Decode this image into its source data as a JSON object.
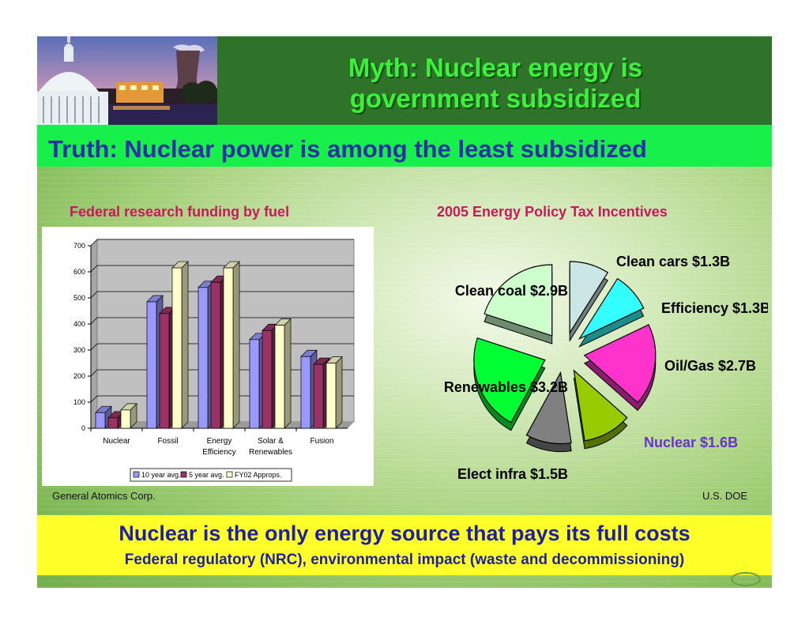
{
  "header": {
    "title_line1": "Myth: Nuclear energy is",
    "title_line2": "government subsidized",
    "image": "capitol-dome-and-cooling-tower-photo"
  },
  "truth": "Truth: Nuclear power is among the least subsidized",
  "bottom": {
    "main": "Nuclear is the only energy source that pays its full costs",
    "sub": "Federal regulatory (NRC), environmental impact (waste and decommissioning)"
  },
  "colors": {
    "header_band": "#2f7229",
    "title_green": "#3cf03c",
    "truth_band": "#17f04a",
    "truth_text": "#2b30a6",
    "subtitle": "#c8195c",
    "bottom_band": "#ffff2a",
    "bottom_text": "#1f1fa6"
  },
  "chart_data": [
    {
      "type": "bar",
      "title": "Federal research funding by fuel",
      "source": "General Atomics Corp.",
      "categories": [
        "Nuclear",
        "Fossil",
        "Energy Efficiency",
        "Solar & Renewables",
        "Fusion"
      ],
      "category_lines": [
        [
          "Nuclear"
        ],
        [
          "Fossil"
        ],
        [
          "Energy",
          "Efficiency"
        ],
        [
          "Solar &",
          "Renewables"
        ],
        [
          "Fusion"
        ]
      ],
      "series": [
        {
          "name": "10 year avg.",
          "color": "#9999ff",
          "values": [
            60,
            485,
            540,
            340,
            275
          ]
        },
        {
          "name": "5 year avg.",
          "color": "#993366",
          "values": [
            40,
            440,
            560,
            375,
            245
          ]
        },
        {
          "name": "FY02 Approps.",
          "color": "#ffffcc",
          "values": [
            70,
            615,
            615,
            395,
            250
          ]
        }
      ],
      "ylim": [
        0,
        700
      ],
      "yticks": [
        0,
        100,
        200,
        300,
        400,
        500,
        600,
        700
      ],
      "grid": true,
      "legend": "bottom"
    },
    {
      "type": "pie",
      "title": "2005 Energy Policy Tax Incentives",
      "source": "U.S. DOE",
      "unit": "$B",
      "slices": [
        {
          "label": "Clean cars $1.3B",
          "value": 1.3,
          "color": "#cce6e6"
        },
        {
          "label": "Efficiency $1.3B",
          "value": 1.3,
          "color": "#33ffff"
        },
        {
          "label": "Oil/Gas $2.7B",
          "value": 2.7,
          "color": "#ff33cc"
        },
        {
          "label": "Nuclear $1.6B",
          "value": 1.6,
          "color": "#99cc00",
          "label_color": "#6633cc"
        },
        {
          "label": "Elect infra $1.5B",
          "value": 1.5,
          "color": "#808080"
        },
        {
          "label": "Renewables $3.2B",
          "value": 3.2,
          "color": "#00ff33"
        },
        {
          "label": "Clean coal $2.9B",
          "value": 2.9,
          "color": "#ccffcc"
        }
      ]
    }
  ]
}
